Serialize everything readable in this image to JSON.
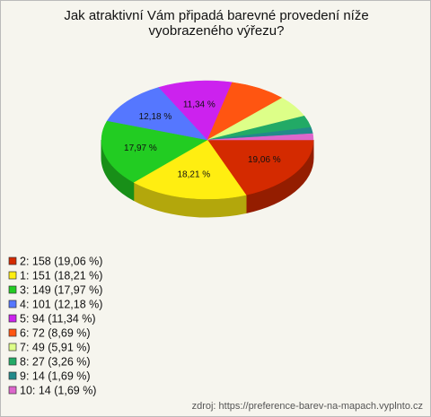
{
  "chart_data": {
    "type": "pie3d",
    "title": "Jak atraktivní Vám připadá barevné provedení níže vyobrazeného výřezu?",
    "categories": [
      "2",
      "1",
      "3",
      "4",
      "5",
      "6",
      "7",
      "8",
      "9",
      "10"
    ],
    "values": [
      19.06,
      18.21,
      17.97,
      12.18,
      11.34,
      8.69,
      5.91,
      3.26,
      1.69,
      1.69
    ],
    "value_labels": [
      "19,06 %",
      "18,21 %",
      "17,97 %",
      "12,18 %",
      "11,34 %",
      null,
      null,
      null,
      null,
      null
    ],
    "legend_labels": [
      "2: 158 (19,06 %)",
      "1: 151 (18,21 %)",
      "3: 149 (17,97 %)",
      "4: 101 (12,18 %)",
      "5: 94 (11,34 %)",
      "6: 72 (8,69 %)",
      "7: 49 (5,91 %)",
      "8: 27 (3,26 %)",
      "9: 14 (1,69 %)",
      "10: 14 (1,69 %)"
    ],
    "colors": [
      "#d42a00",
      "#ffee11",
      "#22cc22",
      "#5577ff",
      "#cc22ee",
      "#ff5511",
      "#ddff88",
      "#22aa66",
      "#228a8a",
      "#dd66cc"
    ],
    "legend": "bottom-left",
    "source": "zdroj: https://preference-barev-na-mapach.vyplnto.cz"
  }
}
